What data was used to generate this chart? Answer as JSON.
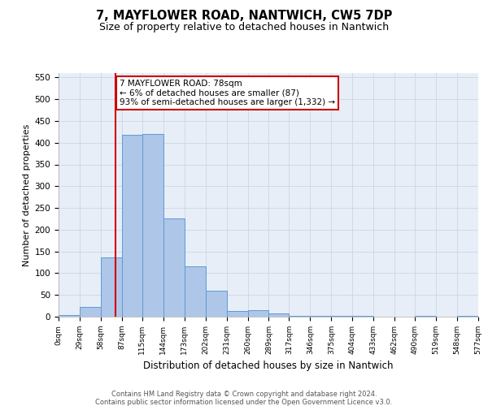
{
  "title": "7, MAYFLOWER ROAD, NANTWICH, CW5 7DP",
  "subtitle": "Size of property relative to detached houses in Nantwich",
  "xlabel": "Distribution of detached houses by size in Nantwich",
  "ylabel": "Number of detached properties",
  "bin_edges": [
    0,
    29,
    58,
    87,
    115,
    144,
    173,
    202,
    231,
    260,
    289,
    317,
    346,
    375,
    404,
    433,
    462,
    490,
    519,
    548,
    577
  ],
  "bin_labels": [
    "0sqm",
    "29sqm",
    "58sqm",
    "87sqm",
    "115sqm",
    "144sqm",
    "173sqm",
    "202sqm",
    "231sqm",
    "260sqm",
    "289sqm",
    "317sqm",
    "346sqm",
    "375sqm",
    "404sqm",
    "433sqm",
    "462sqm",
    "490sqm",
    "519sqm",
    "548sqm",
    "577sqm"
  ],
  "bar_heights": [
    3,
    22,
    137,
    418,
    420,
    226,
    116,
    59,
    13,
    15,
    7,
    2,
    1,
    2,
    1,
    0,
    0,
    1,
    0,
    1
  ],
  "bar_color": "#aec6e8",
  "bar_edge_color": "#5b9bd5",
  "property_line_x": 78,
  "annotation_line1": "7 MAYFLOWER ROAD: 78sqm",
  "annotation_line2": "← 6% of detached houses are smaller (87)",
  "annotation_line3": "93% of semi-detached houses are larger (1,332) →",
  "annotation_box_color": "#ffffff",
  "annotation_box_edge": "#cc0000",
  "vline_color": "#cc0000",
  "ylim": [
    0,
    560
  ],
  "yticks": [
    0,
    50,
    100,
    150,
    200,
    250,
    300,
    350,
    400,
    450,
    500,
    550
  ],
  "grid_color": "#cdd5e3",
  "background_color": "#e8eef8",
  "footer_line1": "Contains HM Land Registry data © Crown copyright and database right 2024.",
  "footer_line2": "Contains public sector information licensed under the Open Government Licence v3.0."
}
